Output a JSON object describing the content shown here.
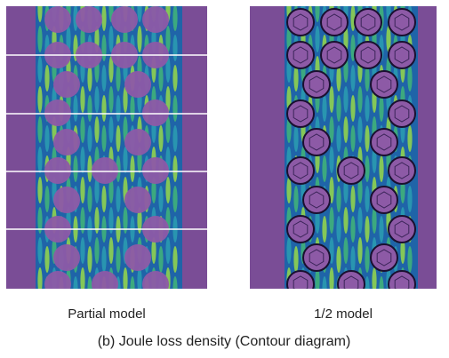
{
  "panels": [
    {
      "label": "Partial model"
    },
    {
      "label": "1/2 model"
    }
  ],
  "caption": "(b) Joule loss density (Contour diagram)"
}
